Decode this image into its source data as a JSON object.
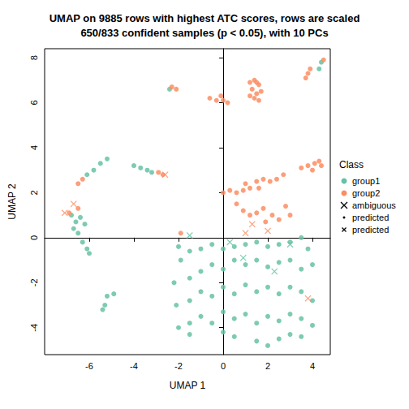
{
  "chart_data": {
    "type": "scatter",
    "title": [
      "UMAP on 9885 rows with highest ATC scores, rows are scaled",
      "650/833 confident samples (p < 0.05), with 10 PCs"
    ],
    "x_label": "UMAP 1",
    "y_label": "UMAP 2",
    "xlim": [
      -8,
      4.8
    ],
    "ylim": [
      -5.2,
      8.4
    ],
    "xticks": [
      -6,
      -4,
      -2,
      0,
      2,
      4
    ],
    "yticks": [
      -4,
      -2,
      0,
      2,
      4,
      6,
      8
    ],
    "legend": "right",
    "legend_title": "Class",
    "series": [
      {
        "name": "group1",
        "color": "#66C2A5",
        "marker": "circle",
        "x": [
          -5.2,
          -5.5,
          -5.8,
          -6.1,
          -4.0,
          -3.7,
          -3.4,
          -3.2,
          -6.8,
          -6.6,
          -6.7,
          -6.5,
          -6.3,
          -6.1,
          -6.0,
          -6.4,
          -6.2,
          -5.2,
          -4.9,
          -5.4,
          -5.3,
          -2.0,
          -1.9,
          -1.5,
          -1.0,
          -0.5,
          0.0,
          0.5,
          1.0,
          1.5,
          2.0,
          2.5,
          3.0,
          3.5,
          3.8,
          -2.2,
          -1.5,
          -1.0,
          -0.5,
          0.0,
          0.5,
          1.0,
          1.5,
          2.0,
          2.5,
          3.0,
          3.5,
          4.0,
          -2.1,
          -1.5,
          -1.0,
          -0.5,
          0.0,
          0.5,
          1.0,
          1.5,
          2.0,
          2.5,
          3.0,
          3.5,
          4.0,
          -2.0,
          -1.5,
          -1.0,
          -0.5,
          0.0,
          0.5,
          1.0,
          1.5,
          2.0,
          2.5,
          3.0,
          3.5,
          4.0,
          -1.5,
          0.0,
          0.5,
          1.5,
          2.0,
          2.5,
          3.0,
          3.5,
          -2.4,
          4.3,
          4.4
        ],
        "y": [
          3.5,
          3.3,
          3.0,
          2.8,
          3.2,
          3.1,
          3.0,
          2.9,
          1.0,
          0.7,
          0.4,
          0.2,
          -0.2,
          -0.5,
          -0.7,
          0.9,
          0.6,
          -2.6,
          -2.5,
          -3.2,
          -3.0,
          -0.4,
          -1.0,
          -0.6,
          -0.5,
          -0.3,
          -0.5,
          -0.4,
          -0.3,
          -0.2,
          -0.4,
          -0.3,
          -0.2,
          0.0,
          -0.5,
          -2.0,
          -1.8,
          -1.5,
          -1.2,
          -1.4,
          -1.0,
          -1.2,
          -1.0,
          -1.3,
          -1.1,
          -1.0,
          -1.4,
          -1.2,
          -3.0,
          -2.8,
          -2.4,
          -2.6,
          -2.2,
          -2.5,
          -2.1,
          -2.4,
          -2.2,
          -2.5,
          -2.2,
          -2.4,
          -2.8,
          -4.0,
          -3.8,
          -3.5,
          -3.8,
          -3.3,
          -3.6,
          -3.4,
          -3.8,
          -3.5,
          -3.7,
          -3.4,
          -3.6,
          -3.9,
          -4.3,
          -4.2,
          -4.4,
          -4.6,
          -4.8,
          -4.5,
          -4.3,
          -4.4,
          6.6,
          7.5,
          7.8
        ]
      },
      {
        "name": "group2",
        "color": "#FC8D62",
        "marker": "circle",
        "x": [
          1.2,
          1.4,
          1.6,
          1.3,
          1.5,
          1.7,
          1.4,
          1.6,
          1.2,
          1.5,
          -0.6,
          -0.3,
          0.0,
          0.2,
          -0.1,
          3.8,
          3.9,
          3.7,
          4.5,
          -2.3,
          -2.1,
          3.5,
          3.8,
          4.1,
          4.3,
          4.0,
          4.4,
          0.0,
          0.3,
          0.6,
          0.9,
          1.2,
          1.5,
          1.8,
          2.1,
          2.4,
          2.7,
          1.0,
          1.6,
          0.6,
          0.9,
          1.2,
          1.5,
          1.8,
          2.2,
          2.5,
          3.0,
          2.8,
          1.9,
          -6.5,
          -6.3,
          -2.9,
          -2.7,
          -6.9,
          -6.5,
          -1.9
        ],
        "y": [
          6.9,
          7.0,
          6.8,
          6.6,
          6.4,
          6.5,
          6.2,
          6.1,
          6.3,
          6.9,
          6.2,
          6.1,
          6.1,
          6.0,
          6.3,
          7.3,
          7.5,
          7.1,
          7.9,
          6.7,
          6.6,
          3.1,
          3.2,
          3.3,
          3.4,
          3.0,
          3.2,
          2.0,
          2.1,
          2.0,
          2.1,
          2.2,
          2.5,
          2.6,
          2.5,
          2.6,
          2.8,
          2.4,
          2.2,
          1.5,
          1.2,
          1.0,
          1.1,
          1.3,
          1.0,
          0.8,
          1.0,
          1.4,
          0.7,
          2.4,
          2.6,
          2.9,
          2.8,
          1.1,
          1.3,
          0.2
        ]
      },
      {
        "name": "ambiguous",
        "color": "#000000",
        "marker": "x",
        "x": [
          -6.7,
          -7.1,
          0.3,
          1.0,
          1.3,
          2.0,
          3.8,
          -1.5,
          0.9,
          -2.6,
          3.0,
          2.3
        ],
        "y": [
          1.5,
          1.1,
          -0.2,
          0.2,
          0.6,
          0.3,
          -2.7,
          0.1,
          -0.9,
          2.8,
          -0.3,
          -1.5
        ],
        "colors": [
          "#FC8D62",
          "#FC8D62",
          "#66C2A5",
          "#FC8D62",
          "#FC8D62",
          "#FC8D62",
          "#FC8D62",
          "#66C2A5",
          "#66C2A5",
          "#FC8D62",
          "#66C2A5",
          "#66C2A5"
        ]
      },
      {
        "name": "predicted",
        "color": "#000000",
        "marker": "dot",
        "x": [],
        "y": []
      },
      {
        "name": "predicted",
        "color": "#000000",
        "marker": "small-x",
        "x": [],
        "y": []
      }
    ]
  }
}
